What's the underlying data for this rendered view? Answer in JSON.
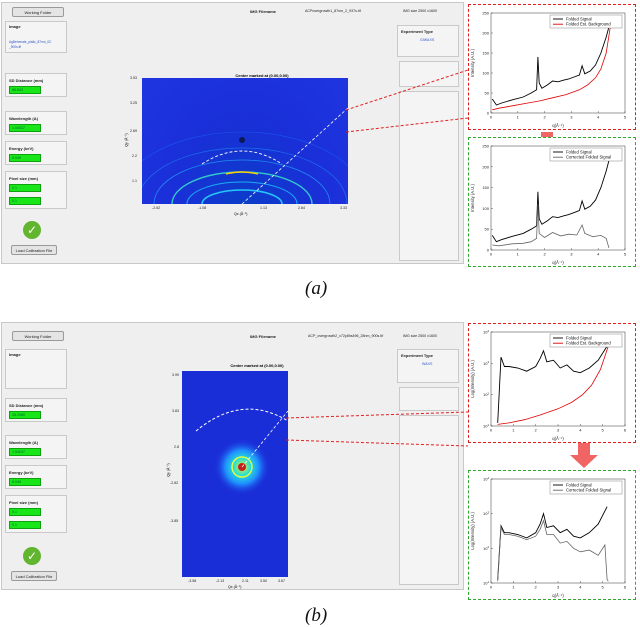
{
  "panel_a": {
    "working_folder_btn": "Working Folder",
    "img_filename_label": "IMG Filename",
    "img_filename_value": "ACPovergrowth1_87nm_2_937s.tif",
    "img_size": "IMG size 2500 x1600",
    "image_label": "Image",
    "image_value_1": "AgBehenate_plaltc_87nm_0C",
    "image_value_2": "_900s.tif",
    "sd_label": "SD Distance (mm)",
    "sd_value": "88.843",
    "wavelength_label": "Wavelength (A)",
    "wavelength_value": "1.54037",
    "energy_label": "Energy (keV)",
    "energy_value": "8.049",
    "pixel_label": "Pixel size (mm)",
    "pixel_value_1": "0.1",
    "pixel_value_2": "0.1",
    "load_btn": "Load Calibration File",
    "experiment_label": "Experiment Type",
    "experiment_value": "GIWAXS",
    "det_title": "Center marked at (0.00,0.00)",
    "det_xlabel": "Qx (Å⁻¹)",
    "det_ylabel": "Qy (Å⁻¹)",
    "det_xticks": [
      "-2.62",
      "-1.08",
      "1.13",
      "2.64",
      "3.33"
    ],
    "det_yticks": [
      "3.53",
      "3.25",
      "2.69",
      "2.2",
      "1.1"
    ],
    "caption": "(a)"
  },
  "panel_b": {
    "working_folder_btn": "Working Folder",
    "img_filename_label": "IMG Filename",
    "img_filename_value": "ACP_overgrowth2_v72y8hs496_28nm_900s.tif",
    "img_size": "IMG size 2500 x1600",
    "image_label": "Image",
    "sd_label": "SD Distance (mm)",
    "sd_value": "35.2980",
    "wavelength_label": "Wavelength (A)",
    "wavelength_value": "1.54037",
    "energy_label": "Energy (keV)",
    "energy_value": "8.049",
    "pixel_label": "Pixel size (mm)",
    "pixel_value_1": "0.1",
    "pixel_value_2": "0.1",
    "load_btn": "Load Calibration File",
    "experiment_label": "Experiment Type",
    "experiment_value": "WAXS",
    "det_title": "Center marked at (0.00,0.00)",
    "det_xlabel": "Qx (Å⁻¹)",
    "det_ylabel": "Qy (Å⁻¹)",
    "det_xticks": [
      "-3.58",
      "-2.13",
      "2.11",
      "3.50",
      "3.67"
    ],
    "det_yticks": [
      "3.99",
      "3.83",
      "2.8",
      "-2.62",
      "-3.85"
    ],
    "caption": "(b)"
  },
  "chart_data": [
    {
      "type": "line",
      "xlabel": "q(Å⁻¹)",
      "ylabel": "Intensity (A.U.)",
      "xlim": [
        0,
        5
      ],
      "ylim": [
        0,
        250
      ],
      "xticks": [
        0,
        1,
        2,
        3,
        4,
        5
      ],
      "yticks": [
        0,
        50,
        100,
        150,
        200,
        250
      ],
      "legend_placement": "top-right",
      "series": [
        {
          "name": "Folded Signal",
          "color": "#000000",
          "x": [
            0.05,
            0.2,
            0.4,
            0.8,
            1.2,
            1.5,
            1.7,
            1.75,
            1.8,
            1.9,
            2.1,
            2.3,
            2.5,
            2.7,
            2.9,
            3.1,
            3.3,
            3.4,
            3.5,
            3.7,
            3.9,
            4.1,
            4.3,
            4.4
          ],
          "y": [
            35,
            20,
            25,
            33,
            40,
            50,
            58,
            140,
            75,
            62,
            70,
            80,
            78,
            82,
            85,
            90,
            95,
            118,
            98,
            105,
            120,
            150,
            190,
            215
          ]
        },
        {
          "name": "Folded Est. Background",
          "color": "#e00000",
          "x": [
            0.05,
            0.3,
            0.8,
            1.3,
            1.8,
            2.3,
            2.8,
            3.3,
            3.6,
            3.9,
            4.1,
            4.3,
            4.45
          ],
          "y": [
            8,
            12,
            18,
            24,
            30,
            38,
            46,
            58,
            70,
            88,
            110,
            150,
            215
          ]
        }
      ]
    },
    {
      "type": "line",
      "xlabel": "q(Å⁻¹)",
      "ylabel": "Intensity (A.U.)",
      "xlim": [
        0,
        5
      ],
      "ylim": [
        0,
        250
      ],
      "xticks": [
        0,
        1,
        2,
        3,
        4,
        5
      ],
      "yticks": [
        0,
        50,
        100,
        150,
        200,
        250
      ],
      "legend_placement": "top-right",
      "series": [
        {
          "name": "Folded Signal",
          "color": "#000000",
          "x": [
            0.05,
            0.2,
            0.4,
            0.8,
            1.2,
            1.5,
            1.7,
            1.75,
            1.8,
            1.9,
            2.1,
            2.3,
            2.5,
            2.7,
            2.9,
            3.1,
            3.3,
            3.4,
            3.5,
            3.7,
            3.9,
            4.1,
            4.3,
            4.4
          ],
          "y": [
            35,
            20,
            25,
            33,
            40,
            50,
            58,
            140,
            75,
            62,
            70,
            80,
            78,
            82,
            85,
            90,
            95,
            118,
            98,
            105,
            120,
            150,
            190,
            215
          ]
        },
        {
          "name": "Corrected Folded Signal",
          "color": "#666666",
          "x": [
            0.05,
            0.3,
            0.8,
            1.2,
            1.5,
            1.7,
            1.75,
            1.8,
            2.0,
            2.3,
            2.6,
            2.9,
            3.2,
            3.4,
            3.5,
            3.8,
            4.1,
            4.3,
            4.4
          ],
          "y": [
            12,
            10,
            15,
            16,
            20,
            28,
            110,
            40,
            30,
            42,
            34,
            38,
            36,
            60,
            40,
            32,
            35,
            28,
            5
          ]
        }
      ]
    },
    {
      "type": "line",
      "xlabel": "q(Å⁻¹)",
      "ylabel": "Log(Intensity) (A.U.)",
      "log_y": true,
      "xlim": [
        0,
        6
      ],
      "ylim_exp": [
        1,
        4
      ],
      "xticks": [
        0,
        1,
        2,
        3,
        4,
        5,
        6
      ],
      "legend_placement": "top-right",
      "series": [
        {
          "name": "Folded Signal",
          "color": "#000000",
          "x": [
            0.3,
            0.45,
            0.6,
            0.8,
            1.2,
            1.6,
            2.0,
            2.2,
            2.35,
            2.5,
            2.8,
            3.1,
            3.4,
            3.7,
            4.0,
            4.4,
            4.8,
            5.2
          ],
          "y": [
            1.1,
            3.2,
            2.9,
            2.9,
            2.85,
            2.75,
            2.9,
            3.15,
            3.4,
            3.05,
            3.1,
            2.85,
            2.95,
            2.75,
            2.7,
            2.85,
            3.1,
            3.55
          ]
        },
        {
          "name": "Folded Est. Background",
          "color": "#e00000",
          "x": [
            0.3,
            0.8,
            1.5,
            2.2,
            3.0,
            3.6,
            4.1,
            4.5,
            4.9,
            5.25
          ],
          "y": [
            1.05,
            1.1,
            1.2,
            1.35,
            1.55,
            1.75,
            2.0,
            2.3,
            2.8,
            3.55
          ]
        }
      ]
    },
    {
      "type": "line",
      "xlabel": "q(Å⁻¹)",
      "ylabel": "Log(Intensity) (A.U.)",
      "log_y": true,
      "xlim": [
        0,
        6
      ],
      "ylim_exp": [
        1,
        4
      ],
      "xticks": [
        0,
        1,
        2,
        3,
        4,
        5,
        6
      ],
      "legend_placement": "top-right",
      "series": [
        {
          "name": "Folded Signal",
          "color": "#000000",
          "x": [
            0.3,
            0.45,
            0.6,
            0.8,
            1.2,
            1.6,
            2.0,
            2.2,
            2.35,
            2.5,
            2.8,
            3.1,
            3.4,
            3.7,
            4.0,
            4.4,
            4.8,
            5.2
          ],
          "y": [
            1.1,
            2.65,
            2.45,
            2.45,
            2.4,
            2.3,
            2.45,
            2.7,
            3.0,
            2.6,
            2.65,
            2.45,
            2.55,
            2.35,
            2.3,
            2.45,
            2.7,
            3.2
          ]
        },
        {
          "name": "Corrected Folded Signal",
          "color": "#666666",
          "x": [
            0.3,
            0.45,
            0.6,
            0.8,
            1.2,
            1.6,
            2.0,
            2.2,
            2.35,
            2.5,
            2.8,
            3.1,
            3.4,
            3.7,
            4.0,
            4.4,
            4.8,
            5.1,
            5.2,
            5.25
          ],
          "y": [
            1.05,
            2.6,
            2.4,
            2.4,
            2.35,
            2.25,
            2.35,
            2.55,
            2.8,
            2.4,
            2.4,
            2.15,
            2.2,
            2.0,
            1.9,
            1.95,
            1.8,
            2.1,
            1.1,
            1.05
          ]
        }
      ]
    }
  ]
}
